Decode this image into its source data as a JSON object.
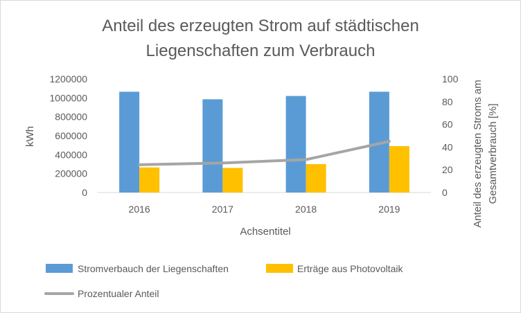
{
  "chart_data": {
    "type": "bar",
    "title_lines": [
      "Anteil des erzeugten Strom auf städtischen",
      "Liegenschaften zum Verbrauch"
    ],
    "categories": [
      "2016",
      "2017",
      "2018",
      "2019"
    ],
    "series": [
      {
        "name": "Stromverbauch der Liegenschaften",
        "type": "bar",
        "axis": "primary",
        "color": "#5B9BD5",
        "values": [
          1065000,
          985000,
          1020000,
          1065000
        ]
      },
      {
        "name": "Erträge aus Photovoltaik",
        "type": "bar",
        "axis": "primary",
        "color": "#FFC000",
        "values": [
          265000,
          260000,
          300000,
          490000
        ]
      },
      {
        "name": "Prozentualer Anteil",
        "type": "line",
        "axis": "secondary",
        "color": "#A5A5A5",
        "values": [
          24.5,
          26,
          29,
          45
        ]
      }
    ],
    "ylabel": "kWh",
    "y2label_lines": [
      "Anteil des erzeugten Stroms am",
      "Gesamtverbrauch [%]"
    ],
    "xlabel": "Achsentitel",
    "ylim": [
      0,
      1200000
    ],
    "yticks": [
      "0",
      "200000",
      "400000",
      "600000",
      "800000",
      "1000000",
      "1200000"
    ],
    "y2lim": [
      0,
      100
    ],
    "y2ticks": [
      "0",
      "20",
      "40",
      "60",
      "80",
      "100"
    ],
    "grid": false,
    "legend_position": "bottom"
  }
}
